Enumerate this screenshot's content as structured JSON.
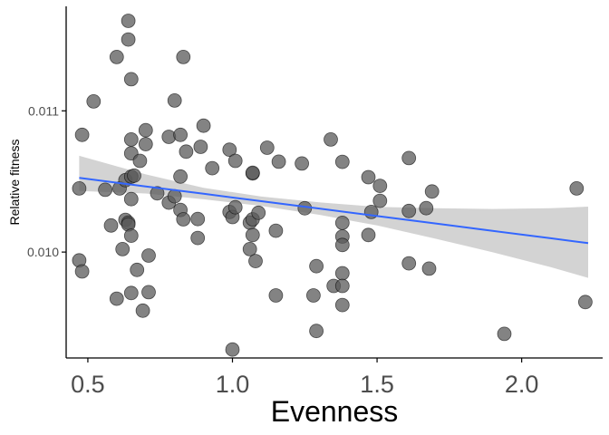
{
  "chart_data": {
    "type": "scatter",
    "title": "",
    "xlabel": "Evenness",
    "ylabel": "Relative fitness",
    "xlim": [
      0.425,
      2.28
    ],
    "ylim": [
      0.00925,
      0.01174
    ],
    "x_ticks": [
      {
        "value": 0.5,
        "label": "0.5"
      },
      {
        "value": 1.0,
        "label": "1.0"
      },
      {
        "value": 1.5,
        "label": "1.5"
      },
      {
        "value": 2.0,
        "label": "2.0"
      }
    ],
    "y_ticks": [
      {
        "value": 0.01,
        "label": "0.010"
      },
      {
        "value": 0.011,
        "label": "0.011"
      }
    ],
    "grid": false,
    "legend": "none",
    "colors": {
      "point_fill": "#5a5a5a",
      "point_stroke": "#000000",
      "trend": "#3366ff",
      "band": "#d3d3d3",
      "axis": "#000000"
    },
    "trend": {
      "x": [
        0.47,
        0.7,
        0.9,
        1.1,
        1.3,
        1.5,
        1.7,
        1.9,
        2.1,
        2.23
      ],
      "y": [
        0.010525,
        0.010465,
        0.010413,
        0.01036,
        0.010308,
        0.010255,
        0.010203,
        0.01015,
        0.010098,
        0.010063
      ],
      "band_low": [
        0.010433,
        0.010415,
        0.010374,
        0.010327,
        0.010264,
        0.010188,
        0.010096,
        0.009998,
        0.009893,
        0.009817
      ],
      "band_high": [
        0.010682,
        0.01055,
        0.010455,
        0.010393,
        0.010352,
        0.01032,
        0.01031,
        0.010305,
        0.01031,
        0.010322
      ]
    },
    "points": [
      {
        "x": 0.47,
        "y": 0.010451
      },
      {
        "x": 0.47,
        "y": 0.009941
      },
      {
        "x": 0.48,
        "y": 0.01083
      },
      {
        "x": 0.48,
        "y": 0.009863
      },
      {
        "x": 0.52,
        "y": 0.011067
      },
      {
        "x": 0.56,
        "y": 0.010441
      },
      {
        "x": 0.58,
        "y": 0.010188
      },
      {
        "x": 0.6,
        "y": 0.011381
      },
      {
        "x": 0.6,
        "y": 0.00967
      },
      {
        "x": 0.61,
        "y": 0.010451
      },
      {
        "x": 0.62,
        "y": 0.010021
      },
      {
        "x": 0.63,
        "y": 0.010509
      },
      {
        "x": 0.63,
        "y": 0.010228
      },
      {
        "x": 0.64,
        "y": 0.010208
      },
      {
        "x": 0.64,
        "y": 0.010195
      },
      {
        "x": 0.64,
        "y": 0.011637
      },
      {
        "x": 0.64,
        "y": 0.011505
      },
      {
        "x": 0.65,
        "y": 0.011224
      },
      {
        "x": 0.65,
        "y": 0.010797
      },
      {
        "x": 0.65,
        "y": 0.010699
      },
      {
        "x": 0.65,
        "y": 0.010534
      },
      {
        "x": 0.65,
        "y": 0.010375
      },
      {
        "x": 0.65,
        "y": 0.010116
      },
      {
        "x": 0.65,
        "y": 0.00971
      },
      {
        "x": 0.66,
        "y": 0.010541
      },
      {
        "x": 0.67,
        "y": 0.009874
      },
      {
        "x": 0.68,
        "y": 0.010646
      },
      {
        "x": 0.69,
        "y": 0.009585
      },
      {
        "x": 0.7,
        "y": 0.010764
      },
      {
        "x": 0.7,
        "y": 0.010863
      },
      {
        "x": 0.71,
        "y": 0.009975
      },
      {
        "x": 0.71,
        "y": 0.009716
      },
      {
        "x": 0.74,
        "y": 0.010416
      },
      {
        "x": 0.78,
        "y": 0.010816
      },
      {
        "x": 0.78,
        "y": 0.01035
      },
      {
        "x": 0.8,
        "y": 0.011073
      },
      {
        "x": 0.8,
        "y": 0.010395
      },
      {
        "x": 0.82,
        "y": 0.01083
      },
      {
        "x": 0.82,
        "y": 0.010535
      },
      {
        "x": 0.82,
        "y": 0.010298
      },
      {
        "x": 0.83,
        "y": 0.011381
      },
      {
        "x": 0.83,
        "y": 0.010232
      },
      {
        "x": 0.84,
        "y": 0.010711
      },
      {
        "x": 0.88,
        "y": 0.010234
      },
      {
        "x": 0.88,
        "y": 0.0101
      },
      {
        "x": 0.89,
        "y": 0.010745
      },
      {
        "x": 0.9,
        "y": 0.010895
      },
      {
        "x": 0.93,
        "y": 0.010594
      },
      {
        "x": 0.99,
        "y": 0.010725
      },
      {
        "x": 0.99,
        "y": 0.010284
      },
      {
        "x": 1.0,
        "y": 0.010248
      },
      {
        "x": 1.0,
        "y": 0.00931
      },
      {
        "x": 1.01,
        "y": 0.010646
      },
      {
        "x": 1.01,
        "y": 0.010317
      },
      {
        "x": 1.06,
        "y": 0.010208
      },
      {
        "x": 1.06,
        "y": 0.010021
      },
      {
        "x": 1.07,
        "y": 0.010557
      },
      {
        "x": 1.07,
        "y": 0.010561
      },
      {
        "x": 1.07,
        "y": 0.010232
      },
      {
        "x": 1.07,
        "y": 0.010121
      },
      {
        "x": 1.08,
        "y": 0.009936
      },
      {
        "x": 1.09,
        "y": 0.010278
      },
      {
        "x": 1.12,
        "y": 0.010739
      },
      {
        "x": 1.15,
        "y": 0.010151
      },
      {
        "x": 1.15,
        "y": 0.009693
      },
      {
        "x": 1.16,
        "y": 0.01064
      },
      {
        "x": 1.24,
        "y": 0.010627
      },
      {
        "x": 1.25,
        "y": 0.01031
      },
      {
        "x": 1.28,
        "y": 0.009693
      },
      {
        "x": 1.29,
        "y": 0.0099
      },
      {
        "x": 1.29,
        "y": 0.009441
      },
      {
        "x": 1.34,
        "y": 0.010797
      },
      {
        "x": 1.35,
        "y": 0.00976
      },
      {
        "x": 1.38,
        "y": 0.010639
      },
      {
        "x": 1.38,
        "y": 0.010207
      },
      {
        "x": 1.38,
        "y": 0.01011
      },
      {
        "x": 1.38,
        "y": 0.01005
      },
      {
        "x": 1.38,
        "y": 0.00985
      },
      {
        "x": 1.38,
        "y": 0.00976
      },
      {
        "x": 1.38,
        "y": 0.009625
      },
      {
        "x": 1.47,
        "y": 0.01053
      },
      {
        "x": 1.47,
        "y": 0.010121
      },
      {
        "x": 1.48,
        "y": 0.010284
      },
      {
        "x": 1.51,
        "y": 0.010469
      },
      {
        "x": 1.51,
        "y": 0.010363
      },
      {
        "x": 1.61,
        "y": 0.010666
      },
      {
        "x": 1.61,
        "y": 0.010291
      },
      {
        "x": 1.61,
        "y": 0.00992
      },
      {
        "x": 1.67,
        "y": 0.010311
      },
      {
        "x": 1.68,
        "y": 0.009883
      },
      {
        "x": 1.69,
        "y": 0.010429
      },
      {
        "x": 1.94,
        "y": 0.009421
      },
      {
        "x": 2.19,
        "y": 0.010451
      },
      {
        "x": 2.22,
        "y": 0.009646
      }
    ]
  }
}
